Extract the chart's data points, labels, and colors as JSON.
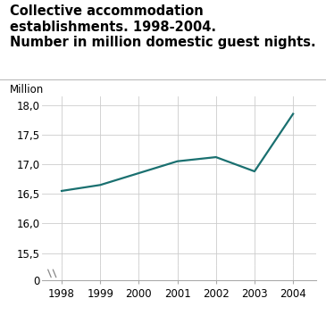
{
  "title_line1": "Collective accommodation establishments. 1998-2004.",
  "title_line2": "Number in million domestic guest nights.",
  "ylabel": "Million",
  "years": [
    1998,
    1999,
    2000,
    2001,
    2002,
    2003,
    2004
  ],
  "values": [
    16.55,
    16.65,
    16.85,
    17.05,
    17.12,
    16.88,
    17.85
  ],
  "line_color": "#1a7070",
  "line_width": 1.6,
  "ylim_main_bottom": 15.3,
  "ylim_main_top": 18.15,
  "yticks_main": [
    15.5,
    16.0,
    16.5,
    17.0,
    17.5,
    18.0
  ],
  "ytick_labels_main": [
    "15,5",
    "16,0",
    "16,5",
    "17,0",
    "17,5",
    "18,0"
  ],
  "grid_color": "#cccccc",
  "background_color": "#ffffff",
  "title_fontsize": 10.5,
  "axis_label_fontsize": 8.5,
  "tick_fontsize": 8.5,
  "spine_color": "#aaaaaa",
  "xlim": [
    1997.5,
    2004.6
  ]
}
